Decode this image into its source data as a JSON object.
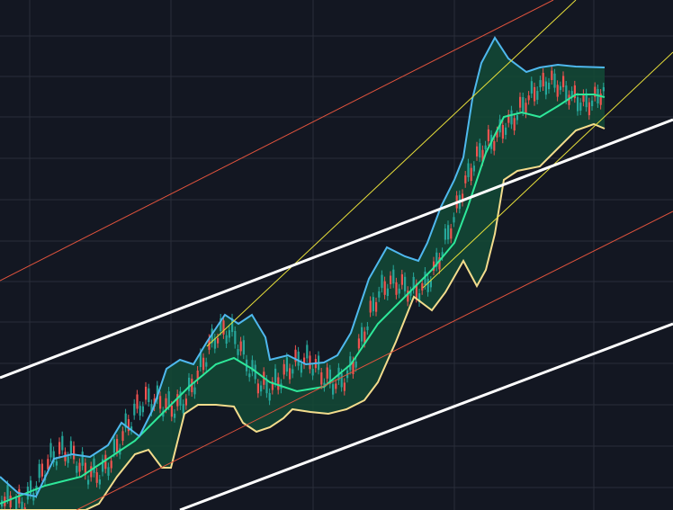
{
  "chart_data": {
    "type": "candlestick",
    "grid": true
  }
}
